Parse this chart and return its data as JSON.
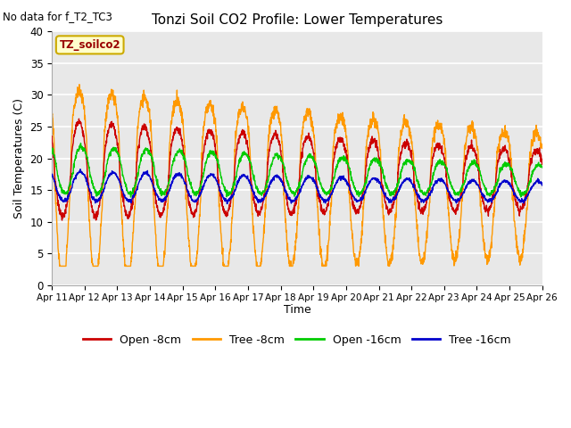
{
  "title": "Tonzi Soil CO2 Profile: Lower Temperatures",
  "no_data_text": "No data for f_T2_TC3",
  "dataset_label": "TZ_soilco2",
  "xlabel": "Time",
  "ylabel": "Soil Temperatures (C)",
  "ylim": [
    0,
    40
  ],
  "yticks": [
    0,
    5,
    10,
    15,
    20,
    25,
    30,
    35,
    40
  ],
  "xtick_labels": [
    "Apr 11",
    "Apr 12",
    "Apr 13",
    "Apr 14",
    "Apr 15",
    "Apr 16",
    "Apr 17",
    "Apr 18",
    "Apr 19",
    "Apr 20",
    "Apr 21",
    "Apr 22",
    "Apr 23",
    "Apr 24",
    "Apr 25",
    "Apr 26"
  ],
  "colors": {
    "open_8cm": "#cc0000",
    "tree_8cm": "#ff9900",
    "open_16cm": "#00cc00",
    "tree_16cm": "#0000cc"
  },
  "legend_labels": [
    "Open -8cm",
    "Tree -8cm",
    "Open -16cm",
    "Tree -16cm"
  ],
  "fig_facecolor": "#ffffff",
  "ax_facecolor": "#e8e8e8",
  "grid_color": "#ffffff"
}
